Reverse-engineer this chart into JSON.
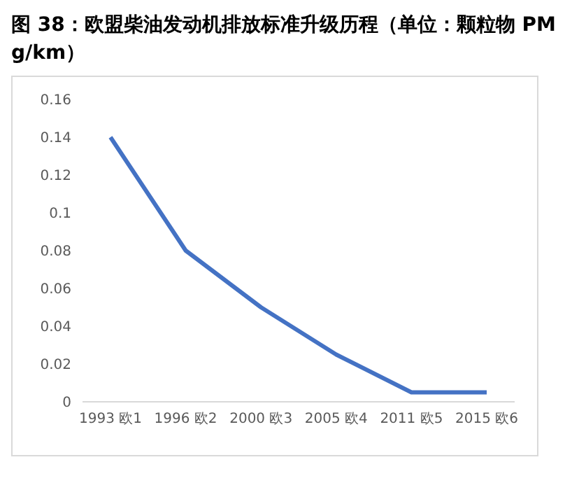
{
  "chart_data": {
    "type": "line",
    "title": "图 38：欧盟柴油发动机排放标准升级历程（单位：颗粒物 PM g/km）",
    "categories": [
      "1993 欧1",
      "1996 欧2",
      "2000 欧3",
      "2005 欧4",
      "2011 欧5",
      "2015 欧6"
    ],
    "series": [
      {
        "color": "#4472c4",
        "values": [
          0.14,
          0.08,
          0.05,
          0.025,
          0.005,
          0.005
        ]
      }
    ],
    "ylim": [
      0,
      0.16
    ],
    "yticks": [
      0,
      0.02,
      0.04,
      0.06,
      0.08,
      0.1,
      0.12,
      0.14,
      0.16
    ],
    "grid": false,
    "marker": "none",
    "line_style": "solid"
  }
}
